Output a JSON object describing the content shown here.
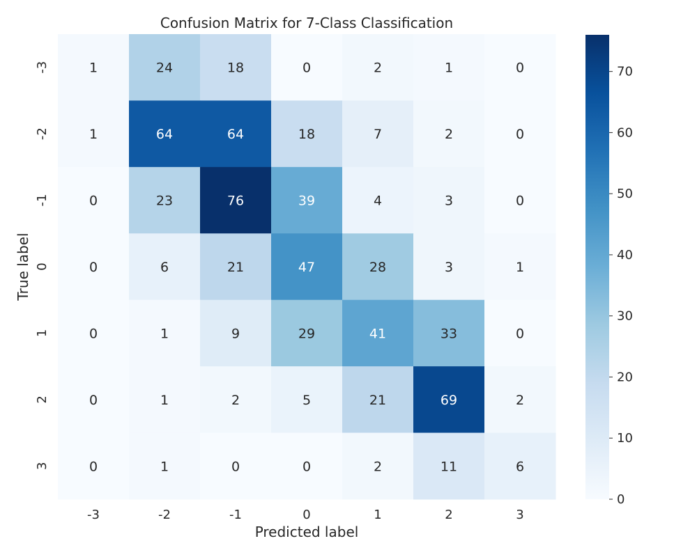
{
  "chart_data": {
    "type": "heatmap",
    "title": "Confusion Matrix for 7-Class Classification",
    "xlabel": "Predicted label",
    "ylabel": "True label",
    "x_categories": [
      "-3",
      "-2",
      "-1",
      "0",
      "1",
      "2",
      "3"
    ],
    "y_categories": [
      "-3",
      "-2",
      "-1",
      "0",
      "1",
      "2",
      "3"
    ],
    "values": [
      [
        1,
        24,
        18,
        0,
        2,
        1,
        0
      ],
      [
        1,
        64,
        64,
        18,
        7,
        2,
        0
      ],
      [
        0,
        23,
        76,
        39,
        4,
        3,
        0
      ],
      [
        0,
        6,
        21,
        47,
        28,
        3,
        1
      ],
      [
        0,
        1,
        9,
        29,
        41,
        33,
        0
      ],
      [
        0,
        1,
        2,
        5,
        21,
        69,
        2
      ],
      [
        0,
        1,
        0,
        0,
        2,
        11,
        6
      ]
    ],
    "colormap": "Blues",
    "color_low": "#f7fbff",
    "color_high": "#08306b",
    "vmin": 0,
    "vmax": 76,
    "colorbar_ticks": [
      0,
      10,
      20,
      30,
      40,
      50,
      60,
      70
    ],
    "grid": false,
    "legend": "colorbar-right"
  }
}
